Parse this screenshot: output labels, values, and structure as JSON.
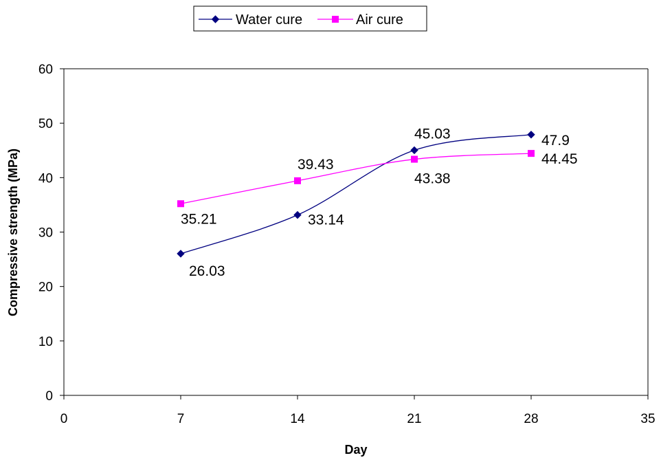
{
  "chart_data": {
    "type": "scatter",
    "title": "",
    "xlabel": "Day",
    "ylabel": "Compressive strength (MPa)",
    "xlim": [
      0,
      35
    ],
    "ylim": [
      0,
      60
    ],
    "xticks": [
      0,
      7,
      14,
      21,
      28,
      35
    ],
    "yticks": [
      0,
      10,
      20,
      30,
      40,
      50,
      60
    ],
    "grid": false,
    "legend": "top-center",
    "series": [
      {
        "name": "Water cure",
        "color": "#000080",
        "marker": "diamond",
        "x": [
          7,
          14,
          21,
          28
        ],
        "y": [
          26.03,
          33.14,
          45.03,
          47.9
        ],
        "labels": [
          "26.03",
          "33.14",
          "45.03",
          "47.9"
        ]
      },
      {
        "name": "Air cure",
        "color": "#FF00FF",
        "marker": "square",
        "x": [
          7,
          14,
          21,
          28
        ],
        "y": [
          35.21,
          39.43,
          43.38,
          44.45
        ],
        "labels": [
          "35.21",
          "39.43",
          "43.38",
          "44.45"
        ]
      }
    ]
  }
}
